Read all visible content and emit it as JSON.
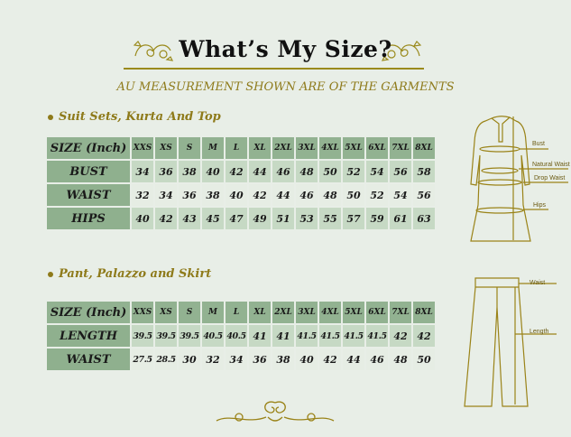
{
  "title": "What’s My Size?",
  "subtitle": "AU MEASUREMENT SHOWN ARE OF THE GARMENTS",
  "accent_color": "#8e7a1a",
  "header_cell_color": "#8fb08e",
  "sections": [
    {
      "heading": "Suit Sets, Kurta And Top",
      "header_label": "SIZE (Inch)",
      "sizes": [
        "XXS",
        "XS",
        "S",
        "M",
        "L",
        "XL",
        "2XL",
        "3XL",
        "4XL",
        "5XL",
        "6XL",
        "7XL",
        "8XL"
      ],
      "rows": [
        {
          "label": "BUST",
          "values": [
            "34",
            "36",
            "38",
            "40",
            "42",
            "44",
            "46",
            "48",
            "50",
            "52",
            "54",
            "56",
            "58"
          ]
        },
        {
          "label": "WAIST",
          "values": [
            "32",
            "34",
            "36",
            "38",
            "40",
            "42",
            "44",
            "46",
            "48",
            "50",
            "52",
            "54",
            "56"
          ]
        },
        {
          "label": "HIPS",
          "values": [
            "40",
            "42",
            "43",
            "45",
            "47",
            "49",
            "51",
            "53",
            "55",
            "57",
            "59",
            "61",
            "63"
          ]
        }
      ],
      "diagram_labels": [
        "Bust",
        "Natural Waist",
        "Drop Waist",
        "Hips"
      ]
    },
    {
      "heading": "Pant, Palazzo and Skirt",
      "header_label": "SIZE (Inch)",
      "sizes": [
        "XXS",
        "XS",
        "S",
        "M",
        "L",
        "XL",
        "2XL",
        "3XL",
        "4XL",
        "5XL",
        "6XL",
        "7XL",
        "8XL"
      ],
      "rows": [
        {
          "label": "LENGTH",
          "values": [
            "39.5",
            "39.5",
            "39.5",
            "40.5",
            "40.5",
            "41",
            "41",
            "41.5",
            "41.5",
            "41.5",
            "41.5",
            "42",
            "42"
          ]
        },
        {
          "label": "WAIST",
          "values": [
            "27.5",
            "28.5",
            "30",
            "32",
            "34",
            "36",
            "38",
            "40",
            "42",
            "44",
            "46",
            "48",
            "50"
          ]
        }
      ],
      "diagram_labels": [
        "Waist",
        "Length"
      ]
    }
  ]
}
